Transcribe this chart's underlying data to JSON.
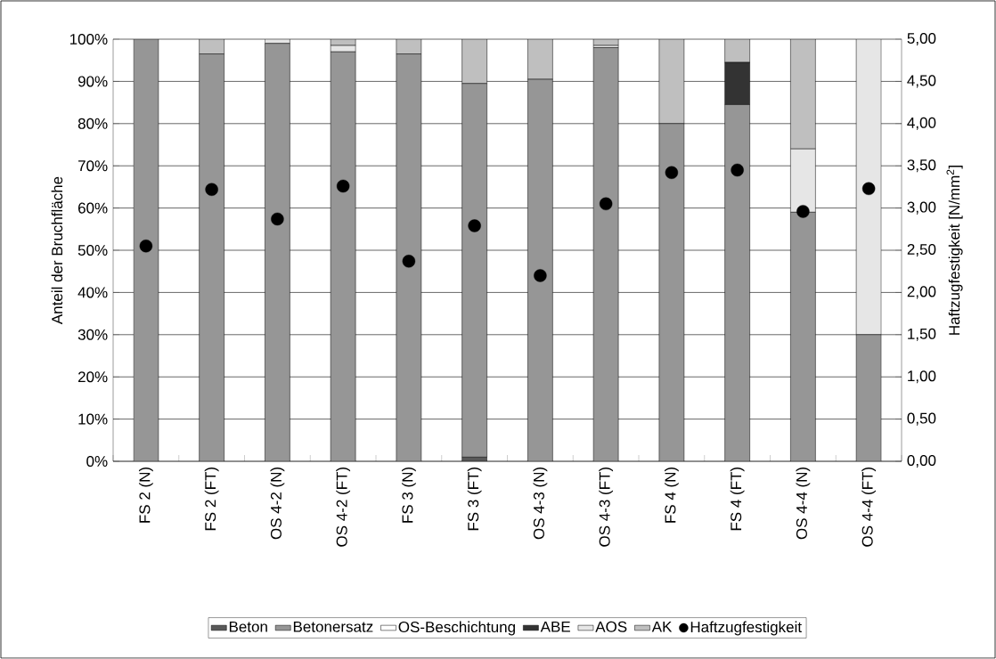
{
  "chart_data": {
    "type": "bar",
    "stacked": true,
    "categories": [
      "FS 2 (N)",
      "FS 2 (FT)",
      "OS 4-2 (N)",
      "OS 4-2 (FT)",
      "FS 3 (N)",
      "FS 3 (FT)",
      "OS 4-3 (N)",
      "OS 4-3 (FT)",
      "FS 4 (N)",
      "FS 4 (FT)",
      "OS 4-4 (N)",
      "OS 4-4 (FT)"
    ],
    "ylabel": "Anteil der Bruchfläche",
    "y2label": "Haftzugfestigkeit [N/mm$^{2}$]",
    "series": [
      {
        "name": "Beton",
        "color": "#595959",
        "values": [
          0,
          0,
          0,
          0,
          0,
          1,
          0,
          0,
          0,
          0,
          0,
          0
        ]
      },
      {
        "name": "Betonersatz",
        "color": "#969696",
        "values": [
          100,
          96.5,
          99,
          97,
          96.5,
          88.5,
          90.5,
          98,
          80,
          84.5,
          59,
          30
        ]
      },
      {
        "name": "OS-Beschichtung",
        "color": "#ffffff",
        "values": [
          0,
          0,
          0,
          0,
          0,
          0,
          0,
          0,
          0,
          0,
          0,
          0
        ]
      },
      {
        "name": "ABE",
        "color": "#333333",
        "values": [
          0,
          0,
          0,
          0,
          0,
          0,
          0,
          0,
          0,
          10,
          0,
          0
        ]
      },
      {
        "name": "AOS",
        "color": "#e6e6e6",
        "values": [
          0,
          0,
          1,
          1.5,
          0,
          0,
          0,
          0.5,
          0,
          0,
          15,
          70
        ]
      },
      {
        "name": "AK",
        "color": "#bfbfbf",
        "values": [
          0,
          3.5,
          0,
          1.5,
          3.5,
          10.5,
          9.5,
          1.5,
          20,
          5.5,
          26,
          0
        ]
      },
      {
        "name": "Haftzugfestigkeit",
        "type": "scatter",
        "axis": "y2",
        "color": "#000000",
        "marker": "circle",
        "values": [
          2.55,
          3.22,
          2.87,
          3.26,
          2.37,
          2.79,
          2.2,
          3.05,
          3.42,
          3.45,
          2.96,
          3.23
        ]
      }
    ],
    "ylim": [
      0,
      100
    ],
    "yticks": [
      {
        "value": 0,
        "label": "0%"
      },
      {
        "value": 10,
        "label": "10%"
      },
      {
        "value": 20,
        "label": "20%"
      },
      {
        "value": 30,
        "label": "30%"
      },
      {
        "value": 40,
        "label": "40%"
      },
      {
        "value": 50,
        "label": "50%"
      },
      {
        "value": 60,
        "label": "60%"
      },
      {
        "value": 70,
        "label": "70%"
      },
      {
        "value": 80,
        "label": "80%"
      },
      {
        "value": 90,
        "label": "90%"
      },
      {
        "value": 100,
        "label": "100%"
      }
    ],
    "y2lim": [
      0,
      5
    ],
    "y2ticks": [
      {
        "value": 0,
        "label": "0,00"
      },
      {
        "value": 0.5,
        "label": "0,50"
      },
      {
        "value": 1,
        "label": "1,00"
      },
      {
        "value": 1.5,
        "label": "1,50"
      },
      {
        "value": 2,
        "label": "2,00"
      },
      {
        "value": 2.5,
        "label": "2,50"
      },
      {
        "value": 3,
        "label": "3,00"
      },
      {
        "value": 3.5,
        "label": "3,50"
      },
      {
        "value": 4,
        "label": "4,00"
      },
      {
        "value": 4.5,
        "label": "4,50"
      },
      {
        "value": 5,
        "label": "5,00"
      }
    ],
    "grid": "y",
    "legend": "bottom"
  }
}
